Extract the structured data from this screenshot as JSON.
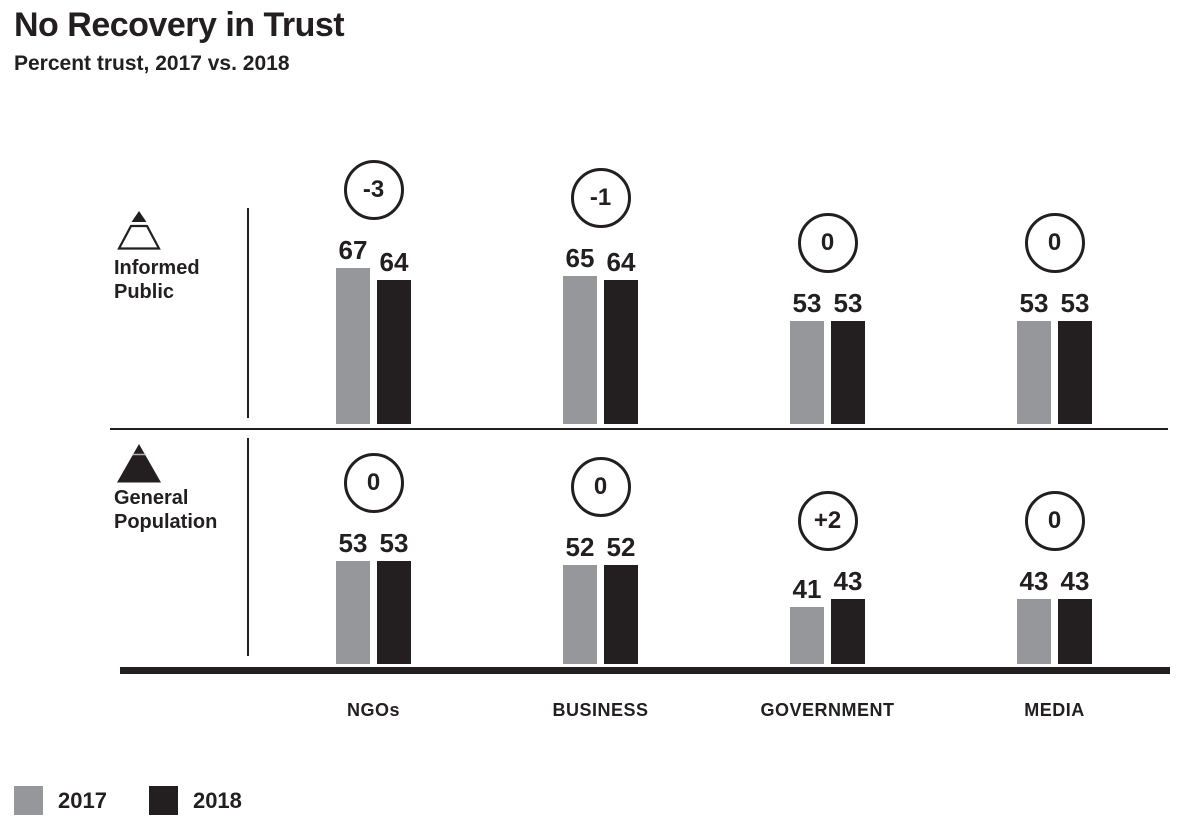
{
  "header": {
    "title": "No Recovery in Trust",
    "subtitle": "Percent trust, 2017 vs. 2018"
  },
  "colors": {
    "series_2017": "#95979b",
    "series_2018": "#231f20",
    "text": "#231f20"
  },
  "rows": {
    "informed": {
      "label": "Informed Public",
      "icon": "informed-public-triangle-icon"
    },
    "general": {
      "label": "General Population",
      "icon": "general-population-triangle-icon"
    }
  },
  "legend": {
    "items": [
      {
        "label": "2017",
        "color": "#95979b"
      },
      {
        "label": "2018",
        "color": "#231f20"
      }
    ]
  },
  "chart_data": {
    "type": "bar",
    "title": "No Recovery in Trust",
    "subtitle": "Percent trust, 2017 vs. 2018",
    "categories": [
      "NGOs",
      "BUSINESS",
      "GOVERNMENT",
      "MEDIA"
    ],
    "panels": [
      {
        "panel_label": "Informed Public",
        "series": [
          {
            "name": "2017",
            "color": "#95979b",
            "values": [
              67,
              65,
              53,
              53
            ]
          },
          {
            "name": "2018",
            "color": "#231f20",
            "values": [
              64,
              64,
              53,
              53
            ]
          }
        ],
        "changes": [
          "-3",
          "-1",
          "0",
          "0"
        ]
      },
      {
        "panel_label": "General Population",
        "series": [
          {
            "name": "2017",
            "color": "#95979b",
            "values": [
              53,
              52,
              41,
              43
            ]
          },
          {
            "name": "2018",
            "color": "#231f20",
            "values": [
              53,
              52,
              43,
              43
            ]
          }
        ],
        "changes": [
          "0",
          "0",
          "+2",
          "0"
        ]
      }
    ],
    "legend_entries": [
      "2017",
      "2018"
    ],
    "value_unit": "percent",
    "grid": false,
    "legend_position": "bottom-left"
  }
}
